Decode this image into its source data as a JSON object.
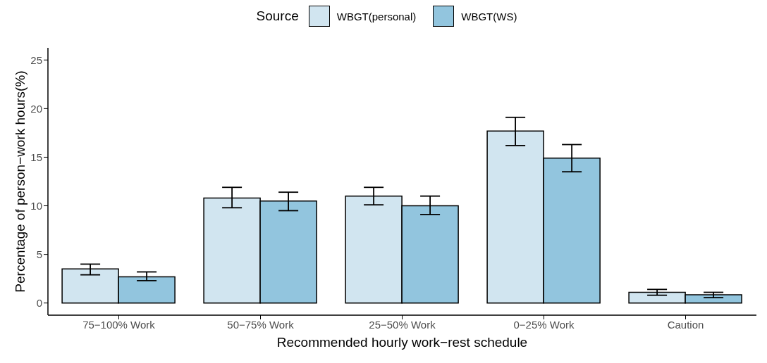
{
  "chart_data": {
    "type": "bar",
    "xlabel": "Recommended hourly work−rest schedule",
    "ylabel": "Percentage of person−work hours(%)",
    "legend_title": "Source",
    "legend": "top",
    "categories": [
      "75−100% Work",
      "50−75% Work",
      "25−50% Work",
      "0−25% Work",
      "Caution"
    ],
    "series": [
      {
        "name": "WBGT(personal)",
        "color": "#d1e5f0",
        "values": [
          3.5,
          10.8,
          11.0,
          17.7,
          1.1
        ],
        "errors": [
          [
            2.9,
            4.0
          ],
          [
            9.8,
            11.9
          ],
          [
            10.1,
            11.9
          ],
          [
            16.2,
            19.1
          ],
          [
            0.8,
            1.4
          ]
        ]
      },
      {
        "name": "WBGT(WS)",
        "color": "#92c5de",
        "values": [
          2.7,
          10.5,
          10.0,
          14.9,
          0.85
        ],
        "errors": [
          [
            2.3,
            3.2
          ],
          [
            9.5,
            11.4
          ],
          [
            9.1,
            11.0
          ],
          [
            13.5,
            16.3
          ],
          [
            0.55,
            1.1
          ]
        ]
      }
    ],
    "ylim": [
      -1.25,
      26.25
    ],
    "yticks": [
      0,
      5,
      10,
      15,
      20,
      25
    ],
    "grid": false
  }
}
